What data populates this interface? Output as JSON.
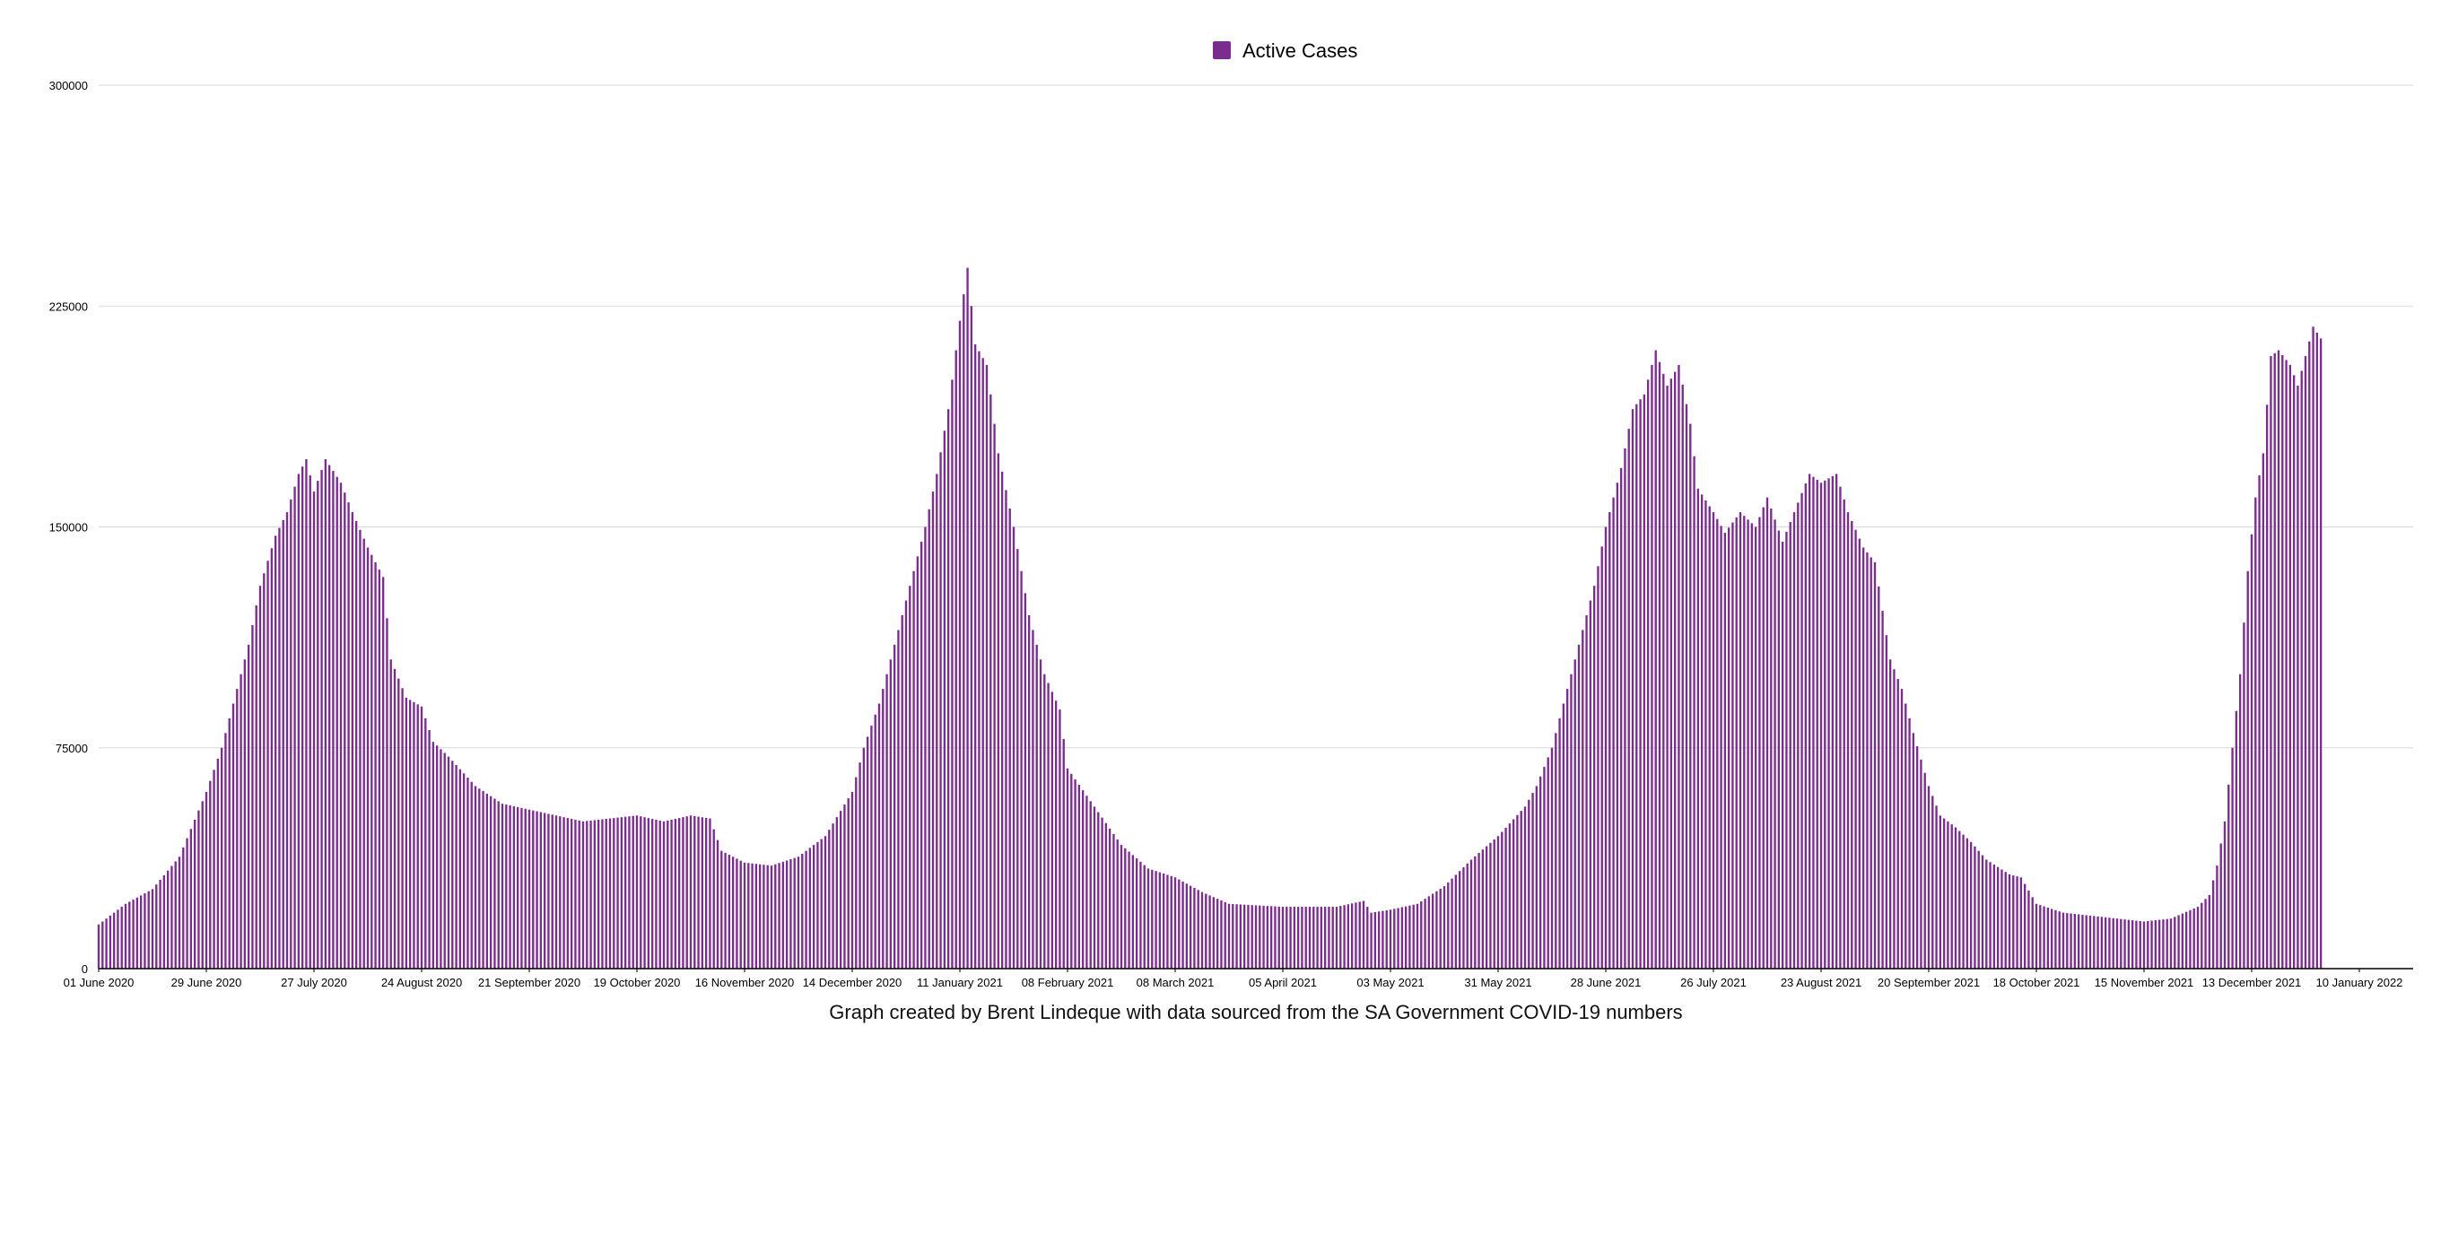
{
  "chart_data": {
    "type": "bar",
    "caption": "Graph created by Brent Lindeque with data sourced from the SA Government COVID-19 numbers",
    "legend": {
      "placement": "top-center"
    },
    "colors": {
      "bar": "#7B2D8E",
      "grid": "#d9d9d9",
      "axis": "#000000"
    },
    "ylim": [
      0,
      300000
    ],
    "yticks": [
      "0",
      "75000",
      "150000",
      "225000",
      "300000"
    ],
    "xrange": [
      "2020-06-01",
      "2022-01-24"
    ],
    "xticks": [
      {
        "date": "2020-06-01",
        "label": "01 June 2020"
      },
      {
        "date": "2020-06-29",
        "label": "29 June 2020"
      },
      {
        "date": "2020-07-27",
        "label": "27 July 2020"
      },
      {
        "date": "2020-08-24",
        "label": "24 August 2020"
      },
      {
        "date": "2020-09-21",
        "label": "21 September 2020"
      },
      {
        "date": "2020-10-19",
        "label": "19 October 2020"
      },
      {
        "date": "2020-11-16",
        "label": "16 November 2020"
      },
      {
        "date": "2020-12-14",
        "label": "14 December 2020"
      },
      {
        "date": "2021-01-11",
        "label": "11 January 2021"
      },
      {
        "date": "2021-02-08",
        "label": "08 February 2021"
      },
      {
        "date": "2021-03-08",
        "label": "08 March 2021"
      },
      {
        "date": "2021-04-05",
        "label": "05 April 2021"
      },
      {
        "date": "2021-05-03",
        "label": "03 May 2021"
      },
      {
        "date": "2021-05-31",
        "label": "31 May 2021"
      },
      {
        "date": "2021-06-28",
        "label": "28 June 2021"
      },
      {
        "date": "2021-07-26",
        "label": "26 July 2021"
      },
      {
        "date": "2021-08-23",
        "label": "23 August 2021"
      },
      {
        "date": "2021-09-20",
        "label": "20 September 2021"
      },
      {
        "date": "2021-10-18",
        "label": "18 October 2021"
      },
      {
        "date": "2021-11-15",
        "label": "15 November 2021"
      },
      {
        "date": "2021-12-13",
        "label": "13 December 2021"
      },
      {
        "date": "2022-01-10",
        "label": "10 January 2022"
      }
    ],
    "series": [
      {
        "name": "Active Cases",
        "points": [
          [
            "2020-06-01",
            15000
          ],
          [
            "2020-06-08",
            22000
          ],
          [
            "2020-06-15",
            27000
          ],
          [
            "2020-06-22",
            38000
          ],
          [
            "2020-06-29",
            60000
          ],
          [
            "2020-07-03",
            75000
          ],
          [
            "2020-07-06",
            90000
          ],
          [
            "2020-07-10",
            110000
          ],
          [
            "2020-07-13",
            130000
          ],
          [
            "2020-07-17",
            147000
          ],
          [
            "2020-07-20",
            155000
          ],
          [
            "2020-07-23",
            168000
          ],
          [
            "2020-07-25",
            173000
          ],
          [
            "2020-07-27",
            162000
          ],
          [
            "2020-07-30",
            173000
          ],
          [
            "2020-08-03",
            165000
          ],
          [
            "2020-08-06",
            155000
          ],
          [
            "2020-08-10",
            143000
          ],
          [
            "2020-08-14",
            133000
          ],
          [
            "2020-08-16",
            105000
          ],
          [
            "2020-08-20",
            92000
          ],
          [
            "2020-08-24",
            89000
          ],
          [
            "2020-08-27",
            77000
          ],
          [
            "2020-08-31",
            72000
          ],
          [
            "2020-09-07",
            62000
          ],
          [
            "2020-09-14",
            56000
          ],
          [
            "2020-09-21",
            54000
          ],
          [
            "2020-10-05",
            50000
          ],
          [
            "2020-10-19",
            52000
          ],
          [
            "2020-10-26",
            50000
          ],
          [
            "2020-11-02",
            52000
          ],
          [
            "2020-11-07",
            51000
          ],
          [
            "2020-11-10",
            40000
          ],
          [
            "2020-11-16",
            36000
          ],
          [
            "2020-11-23",
            35000
          ],
          [
            "2020-11-30",
            38000
          ],
          [
            "2020-12-07",
            45000
          ],
          [
            "2020-12-14",
            60000
          ],
          [
            "2020-12-17",
            75000
          ],
          [
            "2020-12-21",
            90000
          ],
          [
            "2020-12-25",
            110000
          ],
          [
            "2020-12-29",
            130000
          ],
          [
            "2021-01-02",
            150000
          ],
          [
            "2021-01-05",
            168000
          ],
          [
            "2021-01-08",
            190000
          ],
          [
            "2021-01-11",
            220000
          ],
          [
            "2021-01-13",
            238000
          ],
          [
            "2021-01-15",
            212000
          ],
          [
            "2021-01-18",
            205000
          ],
          [
            "2021-01-21",
            175000
          ],
          [
            "2021-01-25",
            150000
          ],
          [
            "2021-01-29",
            120000
          ],
          [
            "2021-02-02",
            100000
          ],
          [
            "2021-02-06",
            88000
          ],
          [
            "2021-02-08",
            68000
          ],
          [
            "2021-02-15",
            55000
          ],
          [
            "2021-02-22",
            42000
          ],
          [
            "2021-03-01",
            34000
          ],
          [
            "2021-03-08",
            31000
          ],
          [
            "2021-03-15",
            26000
          ],
          [
            "2021-03-22",
            22000
          ],
          [
            "2021-04-05",
            21000
          ],
          [
            "2021-04-19",
            21000
          ],
          [
            "2021-04-26",
            23000
          ],
          [
            "2021-04-28",
            19000
          ],
          [
            "2021-05-03",
            20000
          ],
          [
            "2021-05-10",
            22000
          ],
          [
            "2021-05-17",
            28000
          ],
          [
            "2021-05-24",
            37000
          ],
          [
            "2021-05-31",
            45000
          ],
          [
            "2021-06-07",
            55000
          ],
          [
            "2021-06-10",
            62000
          ],
          [
            "2021-06-14",
            75000
          ],
          [
            "2021-06-18",
            95000
          ],
          [
            "2021-06-22",
            115000
          ],
          [
            "2021-06-25",
            130000
          ],
          [
            "2021-06-28",
            150000
          ],
          [
            "2021-07-02",
            170000
          ],
          [
            "2021-07-05",
            190000
          ],
          [
            "2021-07-08",
            195000
          ],
          [
            "2021-07-11",
            210000
          ],
          [
            "2021-07-14",
            198000
          ],
          [
            "2021-07-17",
            205000
          ],
          [
            "2021-07-20",
            185000
          ],
          [
            "2021-07-22",
            163000
          ],
          [
            "2021-07-26",
            155000
          ],
          [
            "2021-07-29",
            148000
          ],
          [
            "2021-08-02",
            155000
          ],
          [
            "2021-08-06",
            150000
          ],
          [
            "2021-08-09",
            160000
          ],
          [
            "2021-08-13",
            145000
          ],
          [
            "2021-08-16",
            155000
          ],
          [
            "2021-08-20",
            168000
          ],
          [
            "2021-08-23",
            165000
          ],
          [
            "2021-08-27",
            168000
          ],
          [
            "2021-08-30",
            155000
          ],
          [
            "2021-09-03",
            143000
          ],
          [
            "2021-09-06",
            138000
          ],
          [
            "2021-09-10",
            105000
          ],
          [
            "2021-09-13",
            95000
          ],
          [
            "2021-09-16",
            80000
          ],
          [
            "2021-09-20",
            62000
          ],
          [
            "2021-09-23",
            52000
          ],
          [
            "2021-09-27",
            48000
          ],
          [
            "2021-10-01",
            43000
          ],
          [
            "2021-10-05",
            37000
          ],
          [
            "2021-10-11",
            32000
          ],
          [
            "2021-10-14",
            31000
          ],
          [
            "2021-10-18",
            22000
          ],
          [
            "2021-10-25",
            19000
          ],
          [
            "2021-11-01",
            18000
          ],
          [
            "2021-11-08",
            17000
          ],
          [
            "2021-11-15",
            16000
          ],
          [
            "2021-11-22",
            17000
          ],
          [
            "2021-11-29",
            21000
          ],
          [
            "2021-12-02",
            25000
          ],
          [
            "2021-12-04",
            35000
          ],
          [
            "2021-12-06",
            50000
          ],
          [
            "2021-12-08",
            75000
          ],
          [
            "2021-12-10",
            100000
          ],
          [
            "2021-12-12",
            135000
          ],
          [
            "2021-12-14",
            160000
          ],
          [
            "2021-12-16",
            175000
          ],
          [
            "2021-12-18",
            208000
          ],
          [
            "2021-12-20",
            210000
          ],
          [
            "2021-12-23",
            205000
          ],
          [
            "2021-12-25",
            198000
          ],
          [
            "2021-12-27",
            208000
          ],
          [
            "2021-12-29",
            218000
          ],
          [
            "2021-12-31",
            214000
          ]
        ]
      }
    ]
  }
}
